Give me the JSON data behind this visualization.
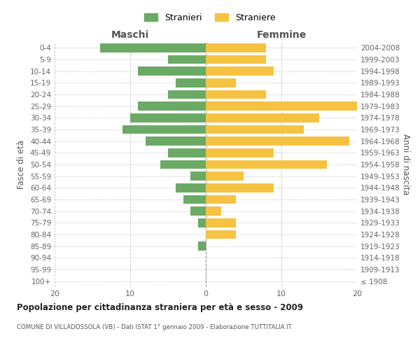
{
  "age_groups": [
    "100+",
    "95-99",
    "90-94",
    "85-89",
    "80-84",
    "75-79",
    "70-74",
    "65-69",
    "60-64",
    "55-59",
    "50-54",
    "45-49",
    "40-44",
    "35-39",
    "30-34",
    "25-29",
    "20-24",
    "15-19",
    "10-14",
    "5-9",
    "0-4"
  ],
  "birth_years": [
    "≤ 1908",
    "1909-1913",
    "1914-1918",
    "1919-1923",
    "1924-1928",
    "1929-1933",
    "1934-1938",
    "1939-1943",
    "1944-1948",
    "1949-1953",
    "1954-1958",
    "1959-1963",
    "1964-1968",
    "1969-1973",
    "1974-1978",
    "1979-1983",
    "1984-1988",
    "1989-1993",
    "1994-1998",
    "1999-2003",
    "2004-2008"
  ],
  "maschi": [
    0,
    0,
    0,
    1,
    0,
    1,
    2,
    3,
    4,
    2,
    6,
    5,
    8,
    11,
    10,
    9,
    5,
    4,
    9,
    5,
    14
  ],
  "femmine": [
    0,
    0,
    0,
    0,
    4,
    4,
    2,
    4,
    9,
    5,
    16,
    9,
    19,
    13,
    15,
    20,
    8,
    4,
    9,
    8,
    8
  ],
  "maschi_color": "#6aaa64",
  "femmine_color": "#f5c242",
  "title": "Popolazione per cittadinanza straniera per età e sesso - 2009",
  "subtitle": "COMUNE DI VILLADOSSOLA (VB) - Dati ISTAT 1° gennaio 2009 - Elaborazione TUTTITALIA.IT",
  "xlabel_left": "Maschi",
  "xlabel_right": "Femmine",
  "ylabel_left": "Fasce di età",
  "ylabel_right": "Anni di nascita",
  "legend_stranieri": "Stranieri",
  "legend_straniere": "Straniere",
  "xlim": 20,
  "background_color": "#ffffff",
  "grid_color": "#cccccc",
  "bar_height": 0.75
}
